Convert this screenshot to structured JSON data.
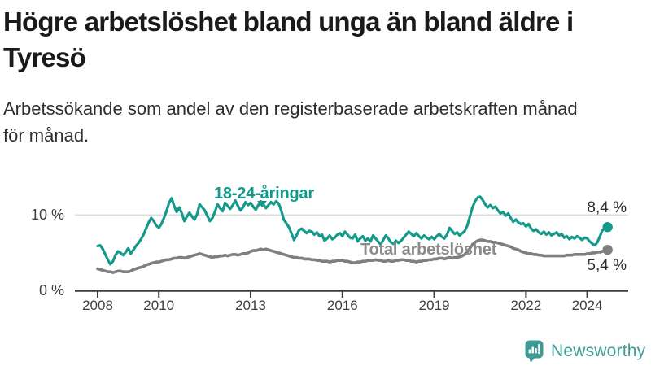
{
  "header": {
    "title_line1": "Högre arbetslöshet bland unga än bland äldre i",
    "title_line2": "Tyresö",
    "subtitle_line1": "Arbetssökande som andel av den registerbaserade arbetskraften månad",
    "subtitle_line2": "för månad."
  },
  "footer": {
    "brand": "Newsworthy",
    "brand_color": "#3d9b94"
  },
  "colors": {
    "accent_teal": "#14998b",
    "line_gray": "#7f7f7f",
    "label_gray": "#8a8a8a",
    "axis": "#3c3c3c",
    "grid": "#dcdcdc",
    "title_text": "#1a1a1a"
  },
  "chart_data": {
    "type": "line",
    "title": "Högre arbetslöshet bland unga än bland äldre i Tyresö",
    "subtitle": "Arbetssökande som andel av den registerbaserade arbetskraften månad för månad.",
    "unit": "%",
    "frequency": "monthly",
    "x_start": "2008-01",
    "x_end": "2024-09",
    "grid": "horizontal-only",
    "legend_position": "inline-labels",
    "ylim": [
      0,
      13
    ],
    "y_ticks": [
      {
        "value": 0,
        "label": "0 %"
      },
      {
        "value": 10,
        "label": "10 %"
      }
    ],
    "x_ticks": [
      {
        "year": 2008,
        "label": "2008"
      },
      {
        "year": 2010,
        "label": "2010"
      },
      {
        "year": 2013,
        "label": "2013"
      },
      {
        "year": 2016,
        "label": "2016"
      },
      {
        "year": 2019,
        "label": "2019"
      },
      {
        "year": 2022,
        "label": "2022"
      },
      {
        "year": 2024,
        "label": "2024"
      }
    ],
    "series": [
      {
        "name": "Total arbetslöshet",
        "color": "#7f7f7f",
        "end_label": "5,4 %",
        "end_value": 5.4,
        "values": [
          2.9,
          2.8,
          2.7,
          2.6,
          2.5,
          2.5,
          2.4,
          2.5,
          2.6,
          2.6,
          2.5,
          2.5,
          2.5,
          2.6,
          2.8,
          2.9,
          3.0,
          3.1,
          3.2,
          3.4,
          3.5,
          3.6,
          3.7,
          3.8,
          3.8,
          3.9,
          4.0,
          4.1,
          4.1,
          4.2,
          4.3,
          4.3,
          4.4,
          4.4,
          4.3,
          4.4,
          4.5,
          4.6,
          4.7,
          4.8,
          4.9,
          4.8,
          4.7,
          4.6,
          4.5,
          4.4,
          4.5,
          4.5,
          4.6,
          4.6,
          4.7,
          4.6,
          4.7,
          4.8,
          4.8,
          4.7,
          4.8,
          4.9,
          4.9,
          5.0,
          5.2,
          5.3,
          5.3,
          5.4,
          5.5,
          5.4,
          5.5,
          5.4,
          5.3,
          5.2,
          5.1,
          5.0,
          4.9,
          4.8,
          4.7,
          4.6,
          4.5,
          4.4,
          4.4,
          4.3,
          4.3,
          4.2,
          4.2,
          4.2,
          4.1,
          4.1,
          4.0,
          4.0,
          3.9,
          3.9,
          3.9,
          3.8,
          3.9,
          3.9,
          4.0,
          4.0,
          4.0,
          3.9,
          3.9,
          3.8,
          3.7,
          3.7,
          3.8,
          3.8,
          3.9,
          3.9,
          4.0,
          4.0,
          4.0,
          4.1,
          4.0,
          4.0,
          3.9,
          3.9,
          4.0,
          3.9,
          3.9,
          4.0,
          4.0,
          4.1,
          4.1,
          4.0,
          4.0,
          3.9,
          3.9,
          3.8,
          3.9,
          3.9,
          4.0,
          4.0,
          4.1,
          4.1,
          4.2,
          4.2,
          4.3,
          4.3,
          4.2,
          4.3,
          4.4,
          4.3,
          4.4,
          4.4,
          4.5,
          4.6,
          4.8,
          5.1,
          5.6,
          6.1,
          6.4,
          6.6,
          6.7,
          6.7,
          6.6,
          6.5,
          6.5,
          6.4,
          6.4,
          6.3,
          6.2,
          6.1,
          6.0,
          5.9,
          5.8,
          5.6,
          5.5,
          5.4,
          5.2,
          5.1,
          5.0,
          4.9,
          4.9,
          4.8,
          4.8,
          4.7,
          4.7,
          4.6,
          4.6,
          4.6,
          4.6,
          4.6,
          4.6,
          4.6,
          4.6,
          4.6,
          4.7,
          4.7,
          4.7,
          4.8,
          4.8,
          4.8,
          4.8,
          4.8,
          4.9,
          4.9,
          5.0,
          5.0,
          5.1,
          5.1,
          5.2,
          5.3,
          5.4
        ]
      },
      {
        "name": "18-24-åringar",
        "color": "#14998b",
        "end_label": "8,4 %",
        "end_value": 8.4,
        "values": [
          5.9,
          6.0,
          5.5,
          4.8,
          4.1,
          3.5,
          3.9,
          4.7,
          5.2,
          5.0,
          4.7,
          5.1,
          5.6,
          4.9,
          5.4,
          5.9,
          6.3,
          6.8,
          7.4,
          8.2,
          9.0,
          9.6,
          9.2,
          8.6,
          8.3,
          8.8,
          9.6,
          10.5,
          11.6,
          12.2,
          11.2,
          10.4,
          11.0,
          10.2,
          9.2,
          9.8,
          10.3,
          9.8,
          9.4,
          10.1,
          11.4,
          11.0,
          10.6,
          9.9,
          9.2,
          9.6,
          10.4,
          11.4,
          10.9,
          10.5,
          11.6,
          11.2,
          10.8,
          11.3,
          11.9,
          11.2,
          10.6,
          11.0,
          11.7,
          11.3,
          11.6,
          11.1,
          10.7,
          11.3,
          11.8,
          11.4,
          10.9,
          11.3,
          11.7,
          11.4,
          11.8,
          11.5,
          10.6,
          9.4,
          8.9,
          8.4,
          7.6,
          6.7,
          7.3,
          8.0,
          8.2,
          7.9,
          7.6,
          7.9,
          7.8,
          7.4,
          7.7,
          7.2,
          7.4,
          6.6,
          6.9,
          7.3,
          6.8,
          7.0,
          7.4,
          7.6,
          7.2,
          7.8,
          7.4,
          7.0,
          6.9,
          7.4,
          6.5,
          6.9,
          7.2,
          6.6,
          6.9,
          6.5,
          7.3,
          6.9,
          6.5,
          6.1,
          6.7,
          7.3,
          6.9,
          6.4,
          6.2,
          6.6,
          6.3,
          6.6,
          7.0,
          7.4,
          7.8,
          7.5,
          7.2,
          7.6,
          7.2,
          6.9,
          7.3,
          7.0,
          6.8,
          7.1,
          6.8,
          7.2,
          7.5,
          7.1,
          6.9,
          7.4,
          8.3,
          7.9,
          7.5,
          7.7,
          7.3,
          7.6,
          7.9,
          8.6,
          9.8,
          11.0,
          11.8,
          12.3,
          12.4,
          12.0,
          11.4,
          11.0,
          11.3,
          10.9,
          11.1,
          10.6,
          10.2,
          10.4,
          9.9,
          10.2,
          9.6,
          9.1,
          9.4,
          9.0,
          8.8,
          8.9,
          8.5,
          8.8,
          8.2,
          7.9,
          8.1,
          7.7,
          7.5,
          7.8,
          7.4,
          7.7,
          7.3,
          7.5,
          7.7,
          7.3,
          7.5,
          7.0,
          7.2,
          6.8,
          7.1,
          6.9,
          7.2,
          7.0,
          6.7,
          7.0,
          6.9,
          6.5,
          6.2,
          6.0,
          6.4,
          7.2,
          8.0,
          8.2,
          8.4
        ]
      }
    ]
  }
}
